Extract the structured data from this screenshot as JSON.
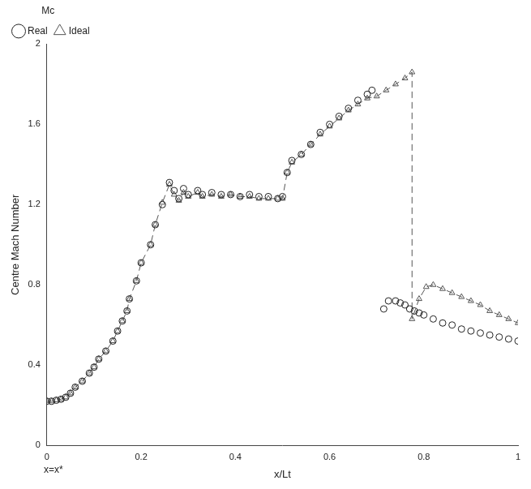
{
  "chart_data": {
    "type": "scatter",
    "xlabel": "x/Lt",
    "ylabel": "Centre Mach Number",
    "legend_title": "Mc",
    "legend": "top",
    "grid": false,
    "xlim": [
      0,
      1
    ],
    "xticks": [
      0,
      0.2,
      0.4,
      0.6,
      0.8,
      1
    ],
    "ylim": [
      0,
      2
    ],
    "yticks": [
      0,
      0.4,
      0.8,
      1.2,
      1.6,
      2
    ],
    "annotations": [
      {
        "text": "x=x*",
        "x": 0
      }
    ],
    "series": [
      {
        "name": "Real",
        "color": "#222222",
        "marker": "circle",
        "line_style": "none",
        "x": [
          0,
          0.01,
          0.02,
          0.03,
          0.04,
          0.05,
          0.06,
          0.075,
          0.09,
          0.1,
          0.11,
          0.125,
          0.14,
          0.15,
          0.16,
          0.17,
          0.175,
          0.19,
          0.2,
          0.22,
          0.23,
          0.245,
          0.26,
          0.27,
          0.28,
          0.29,
          0.3,
          0.32,
          0.33,
          0.35,
          0.37,
          0.39,
          0.41,
          0.43,
          0.45,
          0.47,
          0.49,
          0.5,
          0.51,
          0.52,
          0.54,
          0.56,
          0.58,
          0.6,
          0.62,
          0.64,
          0.66,
          0.68,
          0.69,
          0.715,
          0.725,
          0.74,
          0.75,
          0.76,
          0.77,
          0.78,
          0.79,
          0.8,
          0.82,
          0.84,
          0.86,
          0.88,
          0.9,
          0.92,
          0.94,
          0.96,
          0.98,
          1.0
        ],
        "values": [
          0.22,
          0.22,
          0.225,
          0.23,
          0.24,
          0.26,
          0.29,
          0.32,
          0.36,
          0.39,
          0.43,
          0.47,
          0.52,
          0.57,
          0.62,
          0.67,
          0.73,
          0.82,
          0.91,
          1.0,
          1.1,
          1.2,
          1.31,
          1.27,
          1.23,
          1.28,
          1.25,
          1.27,
          1.25,
          1.26,
          1.25,
          1.25,
          1.24,
          1.25,
          1.24,
          1.24,
          1.23,
          1.24,
          1.36,
          1.42,
          1.45,
          1.5,
          1.56,
          1.6,
          1.64,
          1.68,
          1.72,
          1.75,
          1.77,
          0.68,
          0.72,
          0.72,
          0.71,
          0.7,
          0.68,
          0.67,
          0.66,
          0.65,
          0.63,
          0.61,
          0.6,
          0.58,
          0.57,
          0.56,
          0.55,
          0.54,
          0.53,
          0.52
        ]
      },
      {
        "name": "Ideal",
        "color": "#555555",
        "marker": "triangle",
        "line_style": "dashed",
        "x": [
          0,
          0.01,
          0.02,
          0.03,
          0.04,
          0.05,
          0.06,
          0.075,
          0.09,
          0.1,
          0.11,
          0.125,
          0.14,
          0.15,
          0.16,
          0.17,
          0.175,
          0.19,
          0.2,
          0.22,
          0.23,
          0.245,
          0.26,
          0.27,
          0.28,
          0.29,
          0.3,
          0.32,
          0.33,
          0.35,
          0.37,
          0.39,
          0.41,
          0.43,
          0.45,
          0.47,
          0.49,
          0.5,
          0.51,
          0.52,
          0.54,
          0.56,
          0.58,
          0.6,
          0.62,
          0.64,
          0.66,
          0.68,
          0.7,
          0.72,
          0.74,
          0.76,
          0.775,
          0.775,
          0.79,
          0.805,
          0.82,
          0.84,
          0.86,
          0.88,
          0.9,
          0.92,
          0.94,
          0.96,
          0.98,
          1.0
        ],
        "values": [
          0.22,
          0.22,
          0.225,
          0.23,
          0.24,
          0.26,
          0.29,
          0.32,
          0.36,
          0.39,
          0.43,
          0.47,
          0.52,
          0.57,
          0.62,
          0.67,
          0.73,
          0.82,
          0.91,
          1.0,
          1.1,
          1.21,
          1.3,
          1.25,
          1.22,
          1.26,
          1.24,
          1.26,
          1.24,
          1.25,
          1.24,
          1.25,
          1.24,
          1.24,
          1.23,
          1.23,
          1.23,
          1.23,
          1.36,
          1.41,
          1.45,
          1.5,
          1.55,
          1.59,
          1.63,
          1.67,
          1.7,
          1.73,
          1.74,
          1.77,
          1.8,
          1.83,
          1.86,
          0.63,
          0.73,
          0.79,
          0.8,
          0.78,
          0.76,
          0.74,
          0.72,
          0.7,
          0.67,
          0.65,
          0.63,
          0.61
        ]
      }
    ]
  }
}
